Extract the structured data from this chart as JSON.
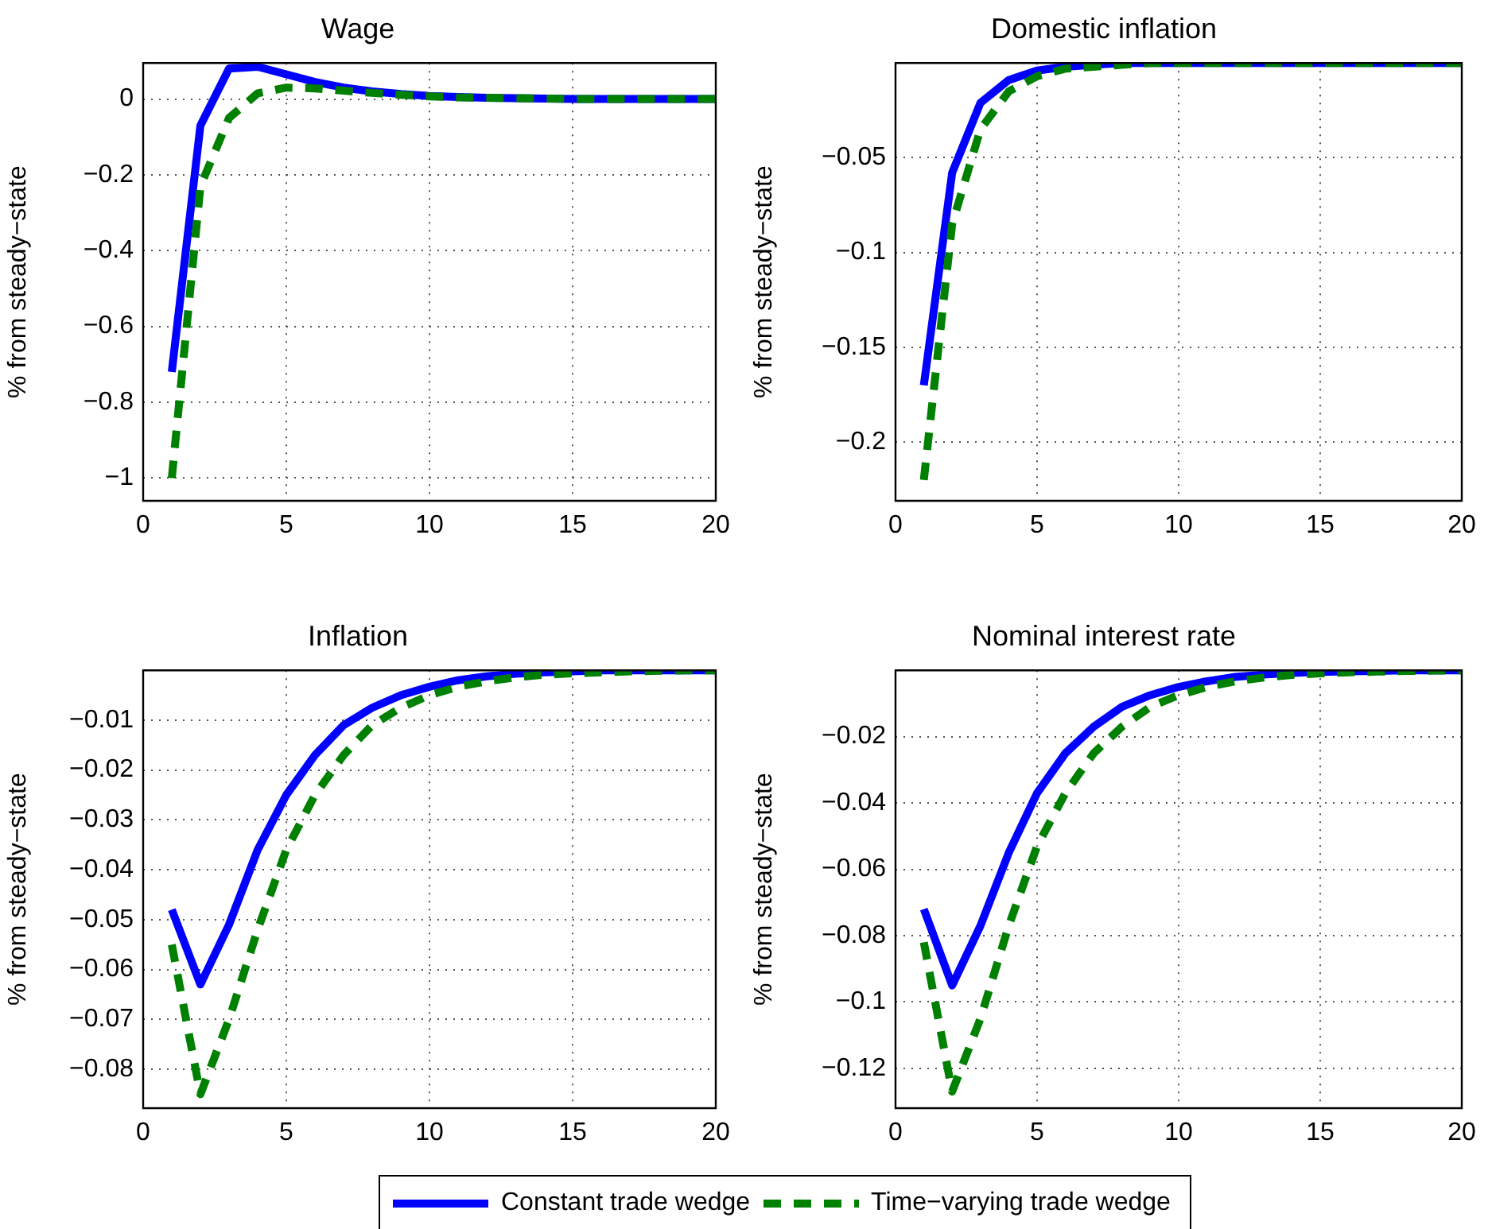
{
  "chart_data": [
    {
      "type": "line",
      "title": "Wage",
      "ylabel": "% from steady−state",
      "x": [
        1,
        2,
        3,
        4,
        5,
        6,
        7,
        8,
        9,
        10,
        11,
        12,
        13,
        14,
        15,
        16,
        17,
        18,
        19,
        20
      ],
      "xlim": [
        0,
        20
      ],
      "xticks": [
        0,
        5,
        10,
        15,
        20
      ],
      "ylim": [
        -1.06,
        0.095
      ],
      "yticks": [
        -1,
        -0.8,
        -0.6,
        -0.4,
        -0.2,
        0
      ],
      "grid": true,
      "series": [
        {
          "color": "#0000ff",
          "line_style": "solid",
          "values": [
            -0.72,
            -0.07,
            0.08,
            0.085,
            0.065,
            0.045,
            0.03,
            0.02,
            0.013,
            0.008,
            0.005,
            0.003,
            0.002,
            0.001,
            0,
            0,
            0,
            0,
            0,
            0
          ]
        },
        {
          "color": "#008000",
          "line_style": "dashed",
          "values": [
            -1.0,
            -0.23,
            -0.05,
            0.015,
            0.03,
            0.028,
            0.022,
            0.016,
            0.011,
            0.007,
            0.004,
            0.003,
            0.002,
            0.001,
            0,
            0,
            0,
            0,
            0,
            0
          ]
        }
      ]
    },
    {
      "type": "line",
      "title": "Domestic inflation",
      "ylabel": "% from steady−state",
      "x": [
        1,
        2,
        3,
        4,
        5,
        6,
        7,
        8,
        9,
        10,
        11,
        12,
        13,
        14,
        15,
        16,
        17,
        18,
        19,
        20
      ],
      "xlim": [
        0,
        20
      ],
      "xticks": [
        0,
        5,
        10,
        15,
        20
      ],
      "ylim": [
        -0.231,
        0
      ],
      "yticks": [
        -0.2,
        -0.15,
        -0.1,
        -0.05
      ],
      "grid": true,
      "series": [
        {
          "color": "#0000ff",
          "line_style": "solid",
          "values": [
            -0.17,
            -0.058,
            -0.021,
            -0.009,
            -0.004,
            -0.002,
            -0.001,
            0,
            0,
            0,
            0,
            0,
            0,
            0,
            0,
            0,
            0,
            0,
            0,
            0
          ]
        },
        {
          "color": "#008000",
          "line_style": "dashed",
          "values": [
            -0.22,
            -0.085,
            -0.035,
            -0.015,
            -0.007,
            -0.003,
            -0.002,
            -0.001,
            0,
            0,
            0,
            0,
            0,
            0,
            0,
            0,
            0,
            0,
            0,
            0
          ]
        }
      ]
    },
    {
      "type": "line",
      "title": "Inflation",
      "ylabel": "% from steady−state",
      "x": [
        1,
        2,
        3,
        4,
        5,
        6,
        7,
        8,
        9,
        10,
        11,
        12,
        13,
        14,
        15,
        16,
        17,
        18,
        19,
        20
      ],
      "xlim": [
        0,
        20
      ],
      "xticks": [
        0,
        5,
        10,
        15,
        20
      ],
      "ylim": [
        -0.0878,
        0
      ],
      "yticks": [
        -0.08,
        -0.07,
        -0.06,
        -0.05,
        -0.04,
        -0.03,
        -0.02,
        -0.01
      ],
      "grid": true,
      "series": [
        {
          "color": "#0000ff",
          "line_style": "solid",
          "values": [
            -0.048,
            -0.063,
            -0.051,
            -0.036,
            -0.025,
            -0.017,
            -0.011,
            -0.0075,
            -0.005,
            -0.0033,
            -0.002,
            -0.0012,
            -0.0007,
            -0.0004,
            -0.0002,
            0,
            0,
            0,
            0,
            0
          ]
        },
        {
          "color": "#008000",
          "line_style": "dashed",
          "values": [
            -0.055,
            -0.085,
            -0.07,
            -0.052,
            -0.036,
            -0.025,
            -0.017,
            -0.011,
            -0.0075,
            -0.005,
            -0.0033,
            -0.0022,
            -0.0014,
            -0.0009,
            -0.0006,
            -0.0004,
            -0.0002,
            -0.0001,
            0,
            0
          ]
        }
      ]
    },
    {
      "type": "line",
      "title": "Nominal interest rate",
      "ylabel": "% from steady−state",
      "x": [
        1,
        2,
        3,
        4,
        5,
        6,
        7,
        8,
        9,
        10,
        11,
        12,
        13,
        14,
        15,
        16,
        17,
        18,
        19,
        20
      ],
      "xlim": [
        0,
        20
      ],
      "xticks": [
        0,
        5,
        10,
        15,
        20
      ],
      "ylim": [
        -0.132,
        0
      ],
      "yticks": [
        -0.12,
        -0.1,
        -0.08,
        -0.06,
        -0.04,
        -0.02
      ],
      "grid": true,
      "legend": "bottom",
      "series": [
        {
          "name": "Constant trade wedge",
          "color": "#0000ff",
          "line_style": "solid",
          "values": [
            -0.072,
            -0.095,
            -0.077,
            -0.055,
            -0.037,
            -0.025,
            -0.017,
            -0.011,
            -0.0075,
            -0.005,
            -0.0033,
            -0.002,
            -0.0013,
            -0.0008,
            -0.0005,
            -0.0003,
            -0.0002,
            0,
            0,
            0
          ]
        },
        {
          "name": "Time−varying trade wedge",
          "color": "#008000",
          "line_style": "dashed",
          "values": [
            -0.082,
            -0.127,
            -0.105,
            -0.077,
            -0.053,
            -0.037,
            -0.025,
            -0.017,
            -0.011,
            -0.0075,
            -0.005,
            -0.0033,
            -0.0022,
            -0.0014,
            -0.0009,
            -0.0006,
            -0.0004,
            -0.0002,
            -0.0001,
            0
          ]
        }
      ]
    }
  ]
}
